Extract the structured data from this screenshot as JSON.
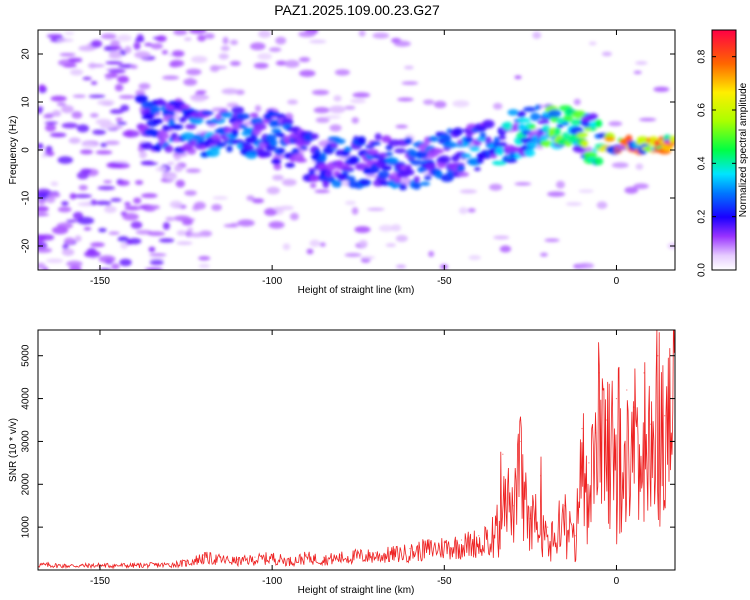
{
  "figure_title": "PAZ1.2025.109.00.23.G27",
  "chart_data": [
    {
      "type": "heatmap",
      "title": "PAZ1.2025.109.00.23.G27",
      "xlabel": "Height of straight line (km)",
      "ylabel": "Frequency (Hz)",
      "xlim": [
        -168,
        17
      ],
      "ylim": [
        -25,
        25
      ],
      "x_ticks": [
        -150,
        -100,
        -50,
        0
      ],
      "y_ticks": [
        -20,
        -10,
        0,
        10,
        20
      ],
      "colorbar": {
        "label": "Normalized spectral amplitude",
        "range": [
          0,
          0.9
        ],
        "ticks": [
          0.0,
          0.2,
          0.4,
          0.6,
          0.8
        ]
      },
      "signal_track": {
        "description": "central frequency ridge vs height",
        "heights": [
          -140,
          -130,
          -120,
          -110,
          -100,
          -90,
          -80,
          -70,
          -60,
          -50,
          -40,
          -30,
          -20,
          -10,
          0,
          10,
          17
        ],
        "frequency_hz": [
          6,
          5,
          4,
          4,
          3,
          -1,
          -3,
          -2,
          -3,
          -1,
          0,
          3,
          5,
          3,
          1,
          1,
          1
        ],
        "peak_amplitude": [
          0.25,
          0.3,
          0.35,
          0.35,
          0.3,
          0.25,
          0.3,
          0.3,
          0.3,
          0.3,
          0.35,
          0.4,
          0.55,
          0.6,
          0.8,
          0.85,
          0.85
        ]
      }
    },
    {
      "type": "line",
      "xlabel": "Height of straight line (km)",
      "ylabel": "SNR (10 * v/v)",
      "xlim": [
        -168,
        17
      ],
      "ylim": [
        0,
        5600
      ],
      "x_ticks": [
        -150,
        -100,
        -50,
        0
      ],
      "y_ticks": [
        1000,
        2000,
        3000,
        4000,
        5000
      ],
      "color": "#ee2222",
      "series": [
        {
          "name": "SNR",
          "x": [
            -168,
            -160,
            -150,
            -140,
            -130,
            -125,
            -120,
            -115,
            -110,
            -105,
            -100,
            -95,
            -90,
            -85,
            -80,
            -75,
            -70,
            -65,
            -60,
            -55,
            -50,
            -45,
            -40,
            -35,
            -33,
            -30,
            -28,
            -25,
            -22,
            -20,
            -15,
            -12,
            -10,
            -8,
            -6,
            -5,
            -3,
            0,
            3,
            5,
            8,
            10,
            12,
            14,
            17
          ],
          "y": [
            150,
            120,
            130,
            130,
            150,
            200,
            350,
            300,
            250,
            300,
            350,
            250,
            350,
            300,
            350,
            400,
            400,
            450,
            500,
            600,
            650,
            700,
            800,
            1100,
            2700,
            1500,
            3000,
            1200,
            2200,
            1000,
            1500,
            800,
            3300,
            2500,
            3200,
            4600,
            3500,
            4000,
            4200,
            3800,
            4600,
            3400,
            5000,
            3600,
            5200
          ]
        }
      ]
    }
  ]
}
